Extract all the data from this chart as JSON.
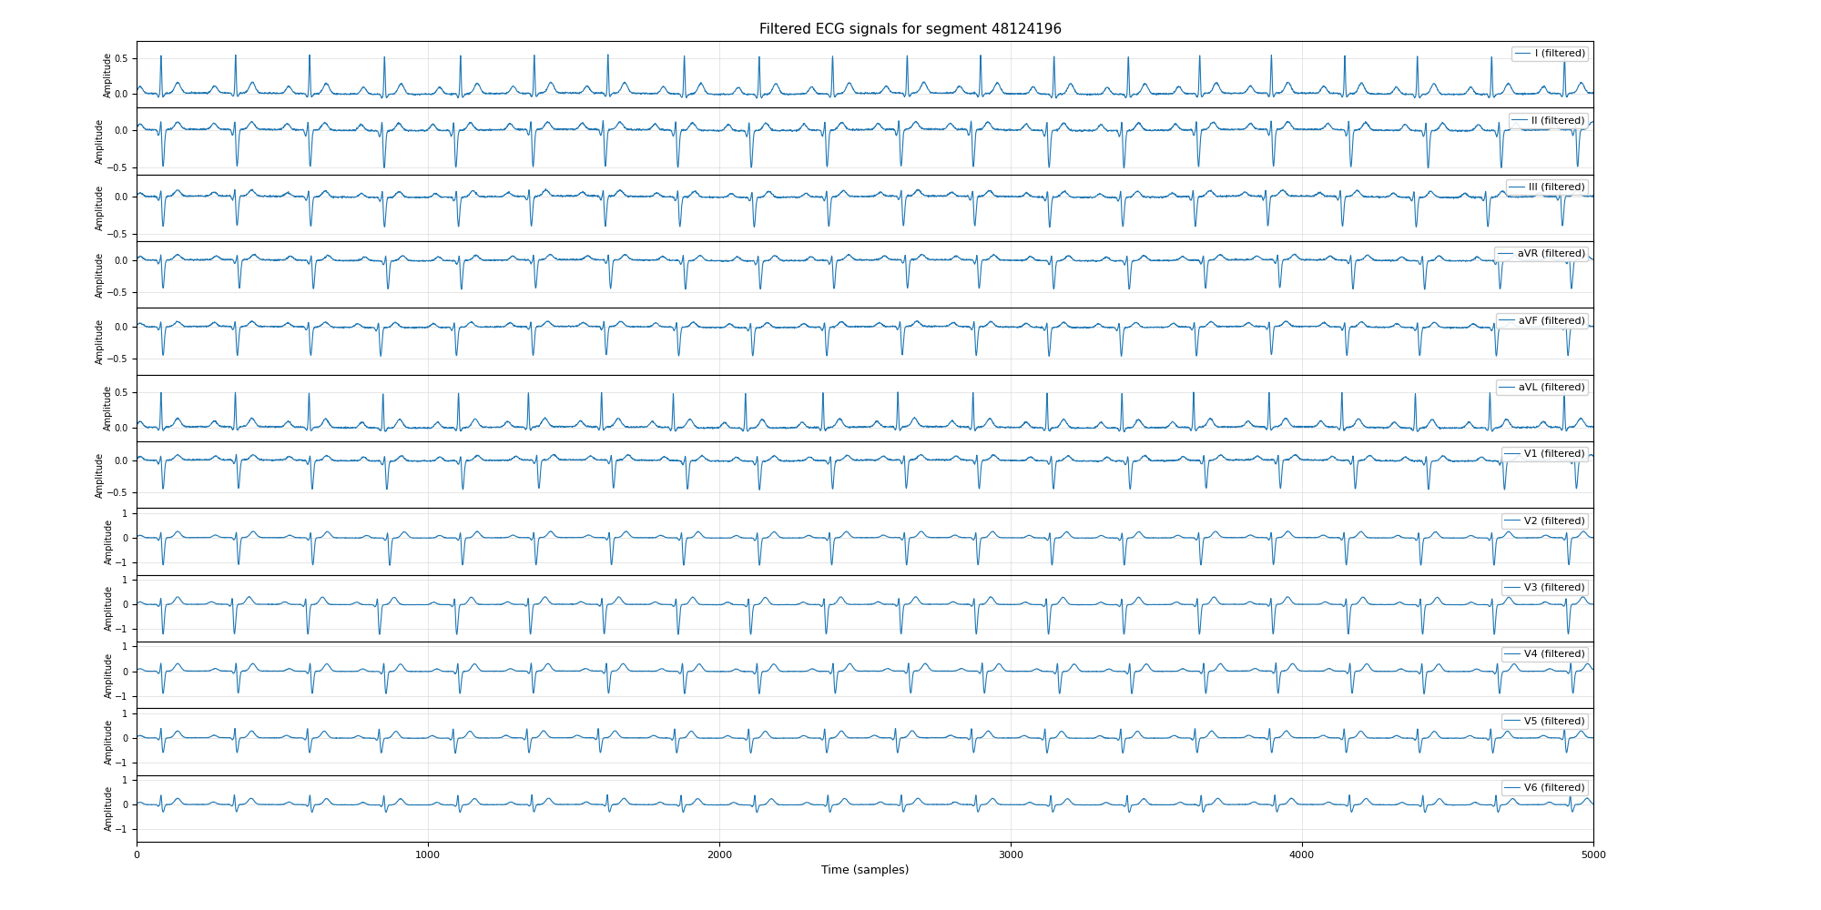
{
  "title": "Filtered ECG signals for segment 48124196",
  "xlabel": "Time (samples)",
  "ylabel": "Amplitude",
  "leads": [
    "I",
    "II",
    "III",
    "aVR",
    "aVF",
    "aVL",
    "V1",
    "V2",
    "V3",
    "V4",
    "V5",
    "V6"
  ],
  "n_samples": 5000,
  "xlim": [
    0,
    5000
  ],
  "line_color": "#1f77b4",
  "line_width": 0.8,
  "background_color": "#ffffff",
  "title_fontsize": 11,
  "label_fontsize": 7,
  "tick_fontsize": 7,
  "legend_fontsize": 8,
  "seed": 42,
  "heart_rate_bpm": 85,
  "fs": 360,
  "lead_configs": {
    "I": {
      "amp_r": 0.55,
      "amp_p": 0.1,
      "amp_t": 0.15,
      "amp_q": -0.05,
      "amp_s": -0.05,
      "ylim": [
        -0.2,
        0.75
      ],
      "yticks": [
        0.0,
        0.5
      ]
    },
    "II": {
      "amp_r": 0.2,
      "amp_p": 0.08,
      "amp_t": 0.1,
      "amp_q": -0.08,
      "amp_s": -0.5,
      "ylim": [
        -0.6,
        0.3
      ],
      "yticks": [
        0.0,
        -0.5
      ]
    },
    "III": {
      "amp_r": 0.15,
      "amp_p": 0.05,
      "amp_t": 0.08,
      "amp_q": -0.05,
      "amp_s": -0.4,
      "ylim": [
        -0.6,
        0.3
      ],
      "yticks": [
        0.0,
        -0.5
      ]
    },
    "aVR": {
      "amp_r": 0.15,
      "amp_p": 0.06,
      "amp_t": 0.08,
      "amp_q": -0.06,
      "amp_s": -0.45,
      "ylim": [
        -0.75,
        0.3
      ],
      "yticks": [
        0.0,
        -0.5
      ]
    },
    "aVF": {
      "amp_r": 0.15,
      "amp_p": 0.06,
      "amp_t": 0.08,
      "amp_q": -0.05,
      "amp_s": -0.45,
      "ylim": [
        -0.75,
        0.3
      ],
      "yticks": [
        0.0,
        -0.5
      ]
    },
    "aVL": {
      "amp_r": 0.5,
      "amp_p": 0.08,
      "amp_t": 0.12,
      "amp_q": -0.04,
      "amp_s": -0.05,
      "ylim": [
        -0.2,
        0.75
      ],
      "yticks": [
        0.0,
        0.5
      ]
    },
    "V1": {
      "amp_r": 0.15,
      "amp_p": 0.06,
      "amp_t": 0.08,
      "amp_q": -0.06,
      "amp_s": -0.45,
      "ylim": [
        -0.75,
        0.3
      ],
      "yticks": [
        0.0,
        -0.5
      ]
    },
    "V2": {
      "amp_r": 0.4,
      "amp_p": 0.1,
      "amp_t": 0.25,
      "amp_q": -0.1,
      "amp_s": -1.1,
      "ylim": [
        -1.5,
        1.2
      ],
      "yticks": [
        -1,
        0,
        1
      ]
    },
    "V3": {
      "amp_r": 0.45,
      "amp_p": 0.1,
      "amp_t": 0.3,
      "amp_q": -0.08,
      "amp_s": -1.2,
      "ylim": [
        -1.5,
        1.2
      ],
      "yticks": [
        -1,
        0,
        1
      ]
    },
    "V4": {
      "amp_r": 0.5,
      "amp_p": 0.1,
      "amp_t": 0.3,
      "amp_q": -0.1,
      "amp_s": -0.9,
      "ylim": [
        -1.5,
        1.2
      ],
      "yticks": [
        -1,
        0,
        1
      ]
    },
    "V5": {
      "amp_r": 0.5,
      "amp_p": 0.1,
      "amp_t": 0.28,
      "amp_q": -0.08,
      "amp_s": -0.6,
      "ylim": [
        -1.5,
        1.2
      ],
      "yticks": [
        -1,
        0,
        1
      ]
    },
    "V6": {
      "amp_r": 0.45,
      "amp_p": 0.1,
      "amp_t": 0.25,
      "amp_q": -0.06,
      "amp_s": -0.3,
      "ylim": [
        -1.5,
        1.2
      ],
      "yticks": [
        -1,
        0,
        1
      ]
    }
  }
}
